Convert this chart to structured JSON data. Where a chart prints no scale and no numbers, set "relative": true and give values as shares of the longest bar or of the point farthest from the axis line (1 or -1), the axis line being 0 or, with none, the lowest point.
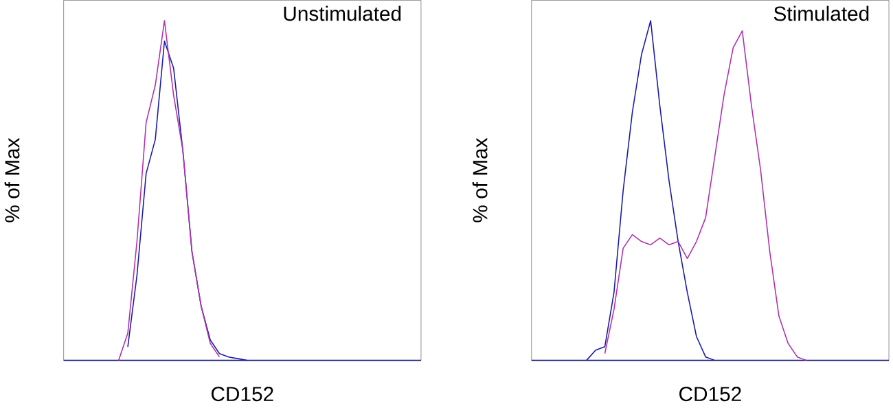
{
  "chart_data": [
    {
      "type": "line",
      "title": "Unstimulated",
      "xlabel": "CD152",
      "ylabel": "% of Max",
      "relative": true,
      "tick_labels": false,
      "categories": [
        null,
        null,
        null,
        null,
        null,
        null,
        null,
        null,
        null,
        null,
        null,
        null,
        null,
        null,
        null,
        null,
        null,
        null,
        null,
        null,
        null,
        null,
        null,
        null,
        null,
        null,
        null,
        null,
        null,
        null,
        null,
        null,
        null,
        null,
        null,
        null,
        null,
        null,
        null,
        null
      ],
      "series": [
        {
          "color": "#1a1aa8",
          "values": [
            null,
            null,
            null,
            null,
            null,
            null,
            null,
            0.04,
            0.25,
            0.55,
            0.65,
            0.94,
            0.86,
            0.62,
            0.32,
            0.16,
            0.06,
            0.02,
            0.01,
            0.005,
            0,
            null,
            null,
            null,
            null,
            null,
            null,
            null,
            null,
            null,
            null,
            null,
            null,
            null,
            null,
            null,
            null,
            null,
            null,
            null
          ]
        },
        {
          "color": "#b030b0",
          "values": [
            null,
            null,
            null,
            null,
            null,
            null,
            0,
            0.08,
            0.35,
            0.7,
            0.81,
            1,
            0.78,
            0.62,
            0.32,
            0.16,
            0.05,
            0.01,
            null,
            null,
            null,
            null,
            null,
            null,
            null,
            null,
            null,
            null,
            null,
            null,
            null,
            null,
            null,
            null,
            null,
            null,
            null,
            null,
            null,
            null
          ]
        }
      ]
    },
    {
      "type": "line",
      "title": "Stimulated",
      "xlabel": "CD152",
      "ylabel": "% of Max",
      "relative": true,
      "tick_labels": false,
      "categories": [
        null,
        null,
        null,
        null,
        null,
        null,
        null,
        null,
        null,
        null,
        null,
        null,
        null,
        null,
        null,
        null,
        null,
        null,
        null,
        null,
        null,
        null,
        null,
        null,
        null,
        null,
        null,
        null,
        null,
        null,
        null,
        null,
        null,
        null,
        null,
        null,
        null,
        null,
        null,
        null
      ],
      "series": [
        {
          "color": "#1a1aa8",
          "values": [
            null,
            null,
            null,
            null,
            null,
            null,
            0,
            0.03,
            0.04,
            0.2,
            0.5,
            0.73,
            0.9,
            1,
            0.75,
            0.53,
            0.35,
            0.2,
            0.07,
            0.01,
            0,
            null,
            null,
            null,
            null,
            null,
            null,
            null,
            null,
            null,
            null,
            null,
            null,
            null,
            null,
            null,
            null,
            null,
            null,
            null
          ]
        },
        {
          "color": "#b030b0",
          "values": [
            null,
            null,
            null,
            null,
            null,
            null,
            null,
            null,
            0.02,
            0.15,
            0.33,
            0.37,
            0.35,
            0.34,
            0.36,
            0.34,
            0.35,
            0.3,
            0.35,
            0.42,
            0.6,
            0.78,
            0.92,
            0.97,
            0.75,
            0.56,
            0.32,
            0.13,
            0.05,
            0.01,
            0,
            null,
            null,
            null,
            null,
            null,
            null,
            null,
            null,
            null
          ]
        }
      ]
    }
  ]
}
